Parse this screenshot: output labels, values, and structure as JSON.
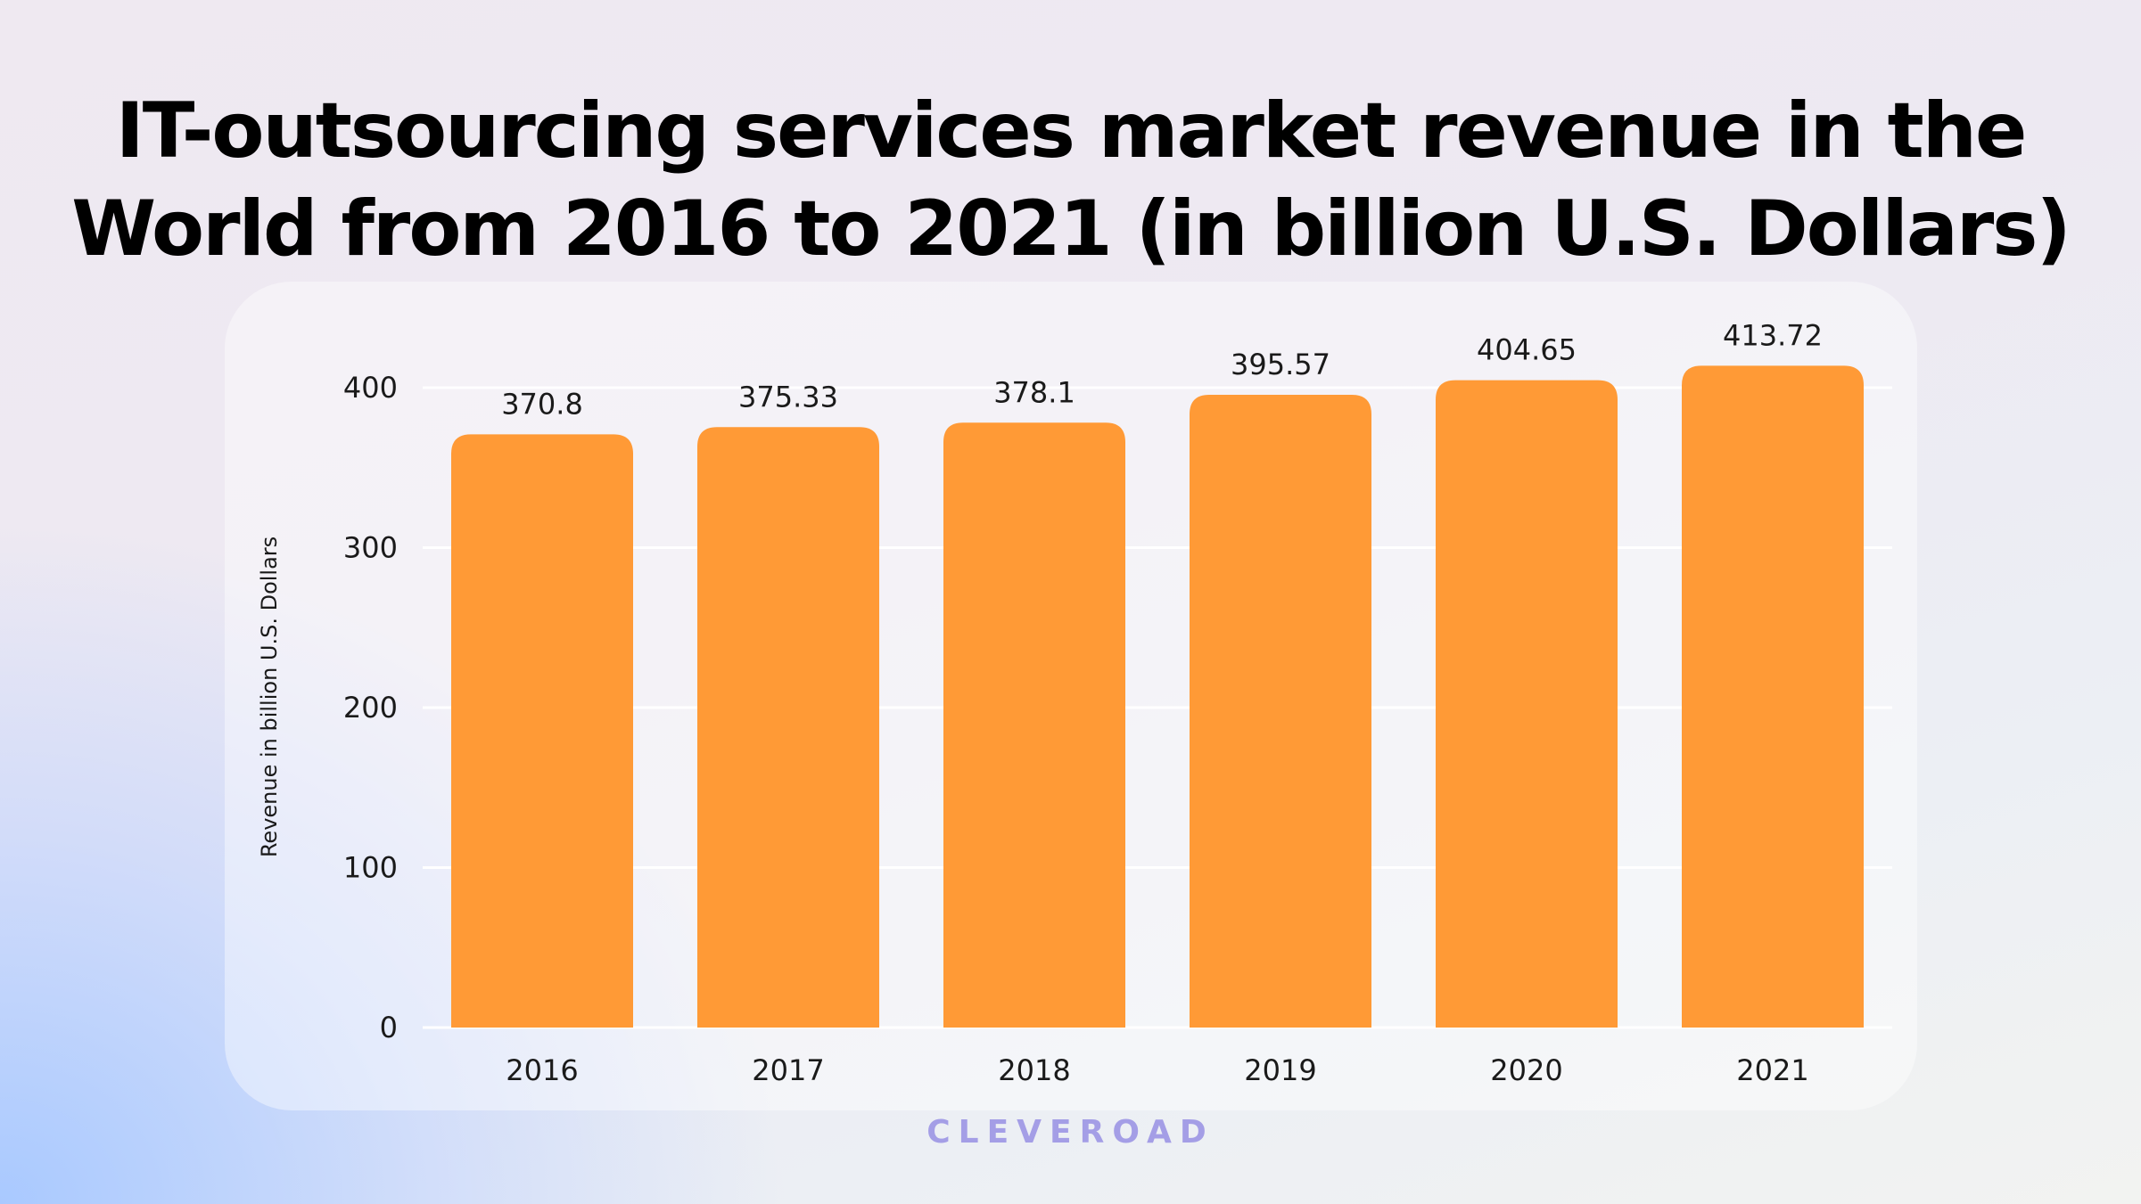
{
  "header": {
    "title_line1": "IT-outsourcing services market revenue in the",
    "title_line2": "World from 2016 to 2021 (in billion U.S. Dollars)"
  },
  "footer": {
    "brand": "CLEVEROAD"
  },
  "colors": {
    "bar": "#ff9a36",
    "grid": "#ffffff",
    "text": "#1a1a1a",
    "brand": "#a49ee6"
  },
  "chart_data": {
    "type": "bar",
    "title": "IT-outsourcing services market revenue in the World from 2016 to 2021 (in billion U.S. Dollars)",
    "xlabel": "",
    "ylabel": "Revenue in billion U.S. Dollars",
    "categories": [
      "2016",
      "2017",
      "2018",
      "2019",
      "2020",
      "2021"
    ],
    "values": [
      370.8,
      375.33,
      378.1,
      395.57,
      404.65,
      413.72
    ],
    "value_labels": [
      "370.8",
      "375.33",
      "378.1",
      "395.57",
      "404.65",
      "413.72"
    ],
    "yticks": [
      0,
      100,
      200,
      300,
      400
    ],
    "ylim": [
      0,
      400
    ],
    "grid": true,
    "legend": "none"
  }
}
